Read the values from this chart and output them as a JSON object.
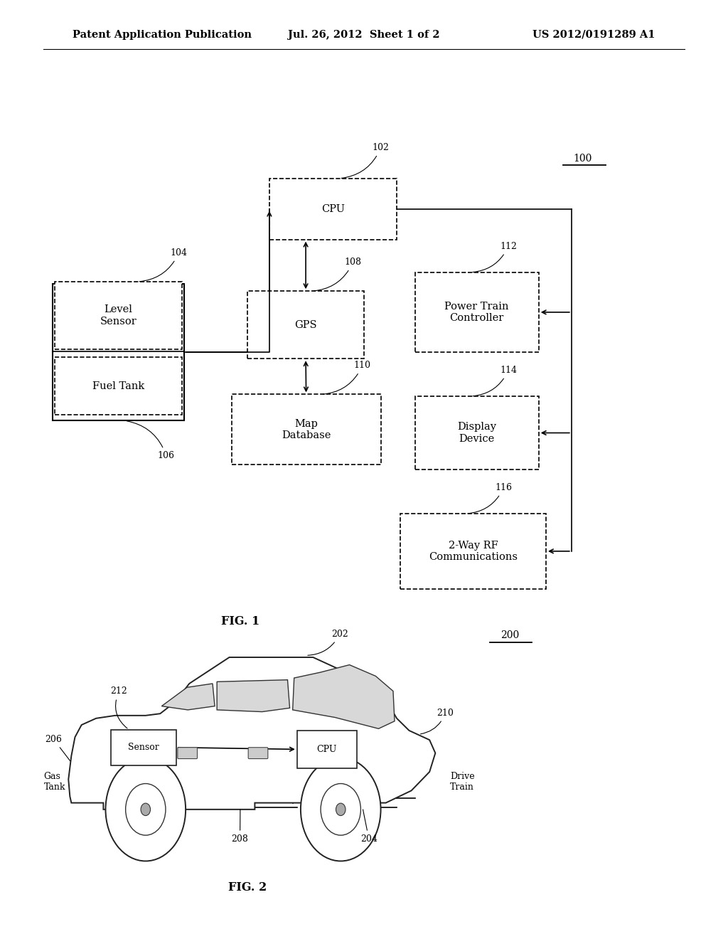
{
  "bg_color": "#ffffff",
  "header_left": "Patent Application Publication",
  "header_center": "Jul. 26, 2012  Sheet 1 of 2",
  "header_right": "US 2012/0191289 A1",
  "fig1_label": "FIG. 1",
  "fig2_label": "FIG. 2",
  "fig1_ref": "100",
  "fig2_ref": "200",
  "text_color": "#000000",
  "line_color": "#000000"
}
